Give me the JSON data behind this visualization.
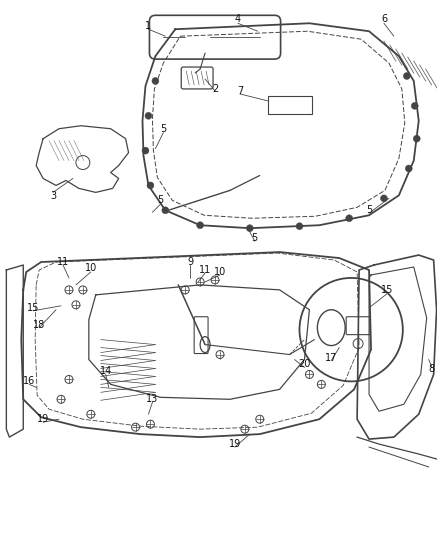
{
  "bg_color": "#ffffff",
  "line_color": "#444444",
  "text_color": "#111111",
  "fig_width": 4.38,
  "fig_height": 5.33,
  "dpi": 100
}
